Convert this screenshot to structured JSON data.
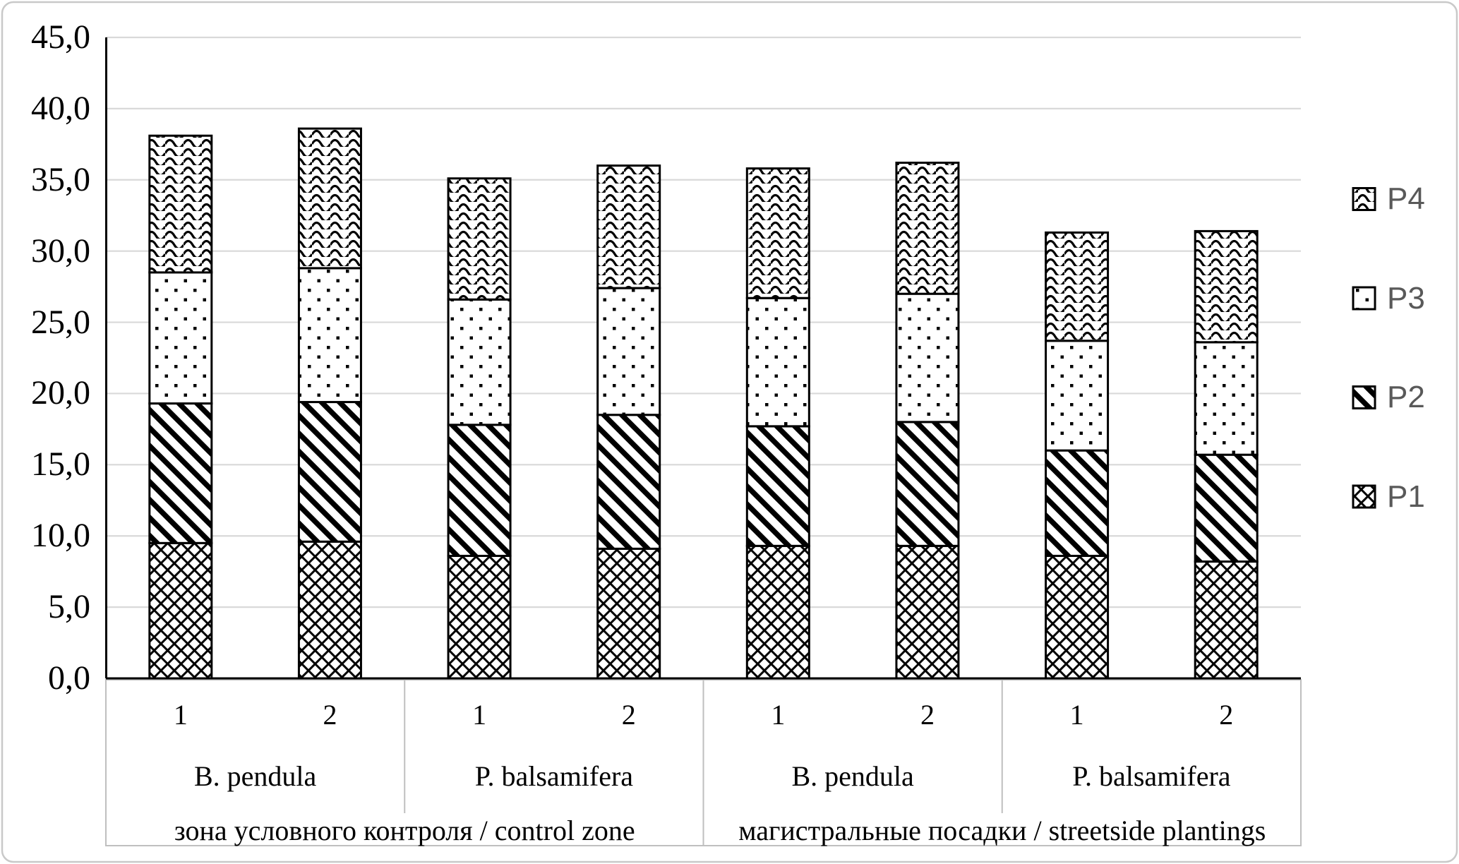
{
  "chart_data": {
    "type": "bar",
    "stacked": true,
    "title": "",
    "xlabel": "",
    "ylabel": "",
    "ylim": [
      0,
      45
    ],
    "ytick_step": 5,
    "decimal_separator": ",",
    "grid": "horizontal",
    "legend_position": "right",
    "ytick_labels": [
      "45,0",
      "40,0",
      "35,0",
      "30,0",
      "25,0",
      "20,0",
      "15,0",
      "10,0",
      "5,0",
      "0,0"
    ],
    "replicate_labels": [
      "1",
      "2",
      "1",
      "2",
      "1",
      "2",
      "1",
      "2"
    ],
    "species_labels": [
      "B. pendula",
      "P. balsamifera",
      "B. pendula",
      "P. balsamifera"
    ],
    "zone_labels": [
      "зона условного контроля / control zone",
      "магистральные посадки / streetside plantings"
    ],
    "series": [
      {
        "name": "P1",
        "pattern": "diagonal-crosshatch",
        "values": [
          9.5,
          9.6,
          8.6,
          9.1,
          9.3,
          9.3,
          8.6,
          8.2
        ]
      },
      {
        "name": "P2",
        "pattern": "diagonal-stripes",
        "values": [
          9.8,
          9.8,
          9.2,
          9.4,
          8.4,
          8.7,
          7.4,
          7.5
        ]
      },
      {
        "name": "P3",
        "pattern": "dots",
        "values": [
          9.2,
          9.4,
          8.8,
          8.9,
          9.0,
          9.0,
          7.7,
          7.9
        ]
      },
      {
        "name": "P4",
        "pattern": "wave",
        "values": [
          9.6,
          9.8,
          8.5,
          8.6,
          9.1,
          9.2,
          7.6,
          7.8
        ]
      }
    ],
    "stack_totals": [
      38.1,
      38.6,
      35.1,
      36.0,
      35.8,
      36.2,
      31.3,
      31.4
    ]
  },
  "legend": {
    "items": [
      {
        "label": "P4",
        "pattern": "wave"
      },
      {
        "label": "P3",
        "pattern": "dots"
      },
      {
        "label": "P2",
        "pattern": "diagonal-stripes"
      },
      {
        "label": "P1",
        "pattern": "diagonal-crosshatch"
      }
    ]
  },
  "colors": {
    "background": "#ffffff",
    "bar_fill": "#ffffff",
    "bar_stroke": "#000000",
    "gridline": "#d9d9d9",
    "axis_line": "#000000",
    "label_grid_line": "#bfbfbf",
    "tick_text": "#000000",
    "legend_text": "#595959",
    "figure_border": "#c9c9c9"
  }
}
